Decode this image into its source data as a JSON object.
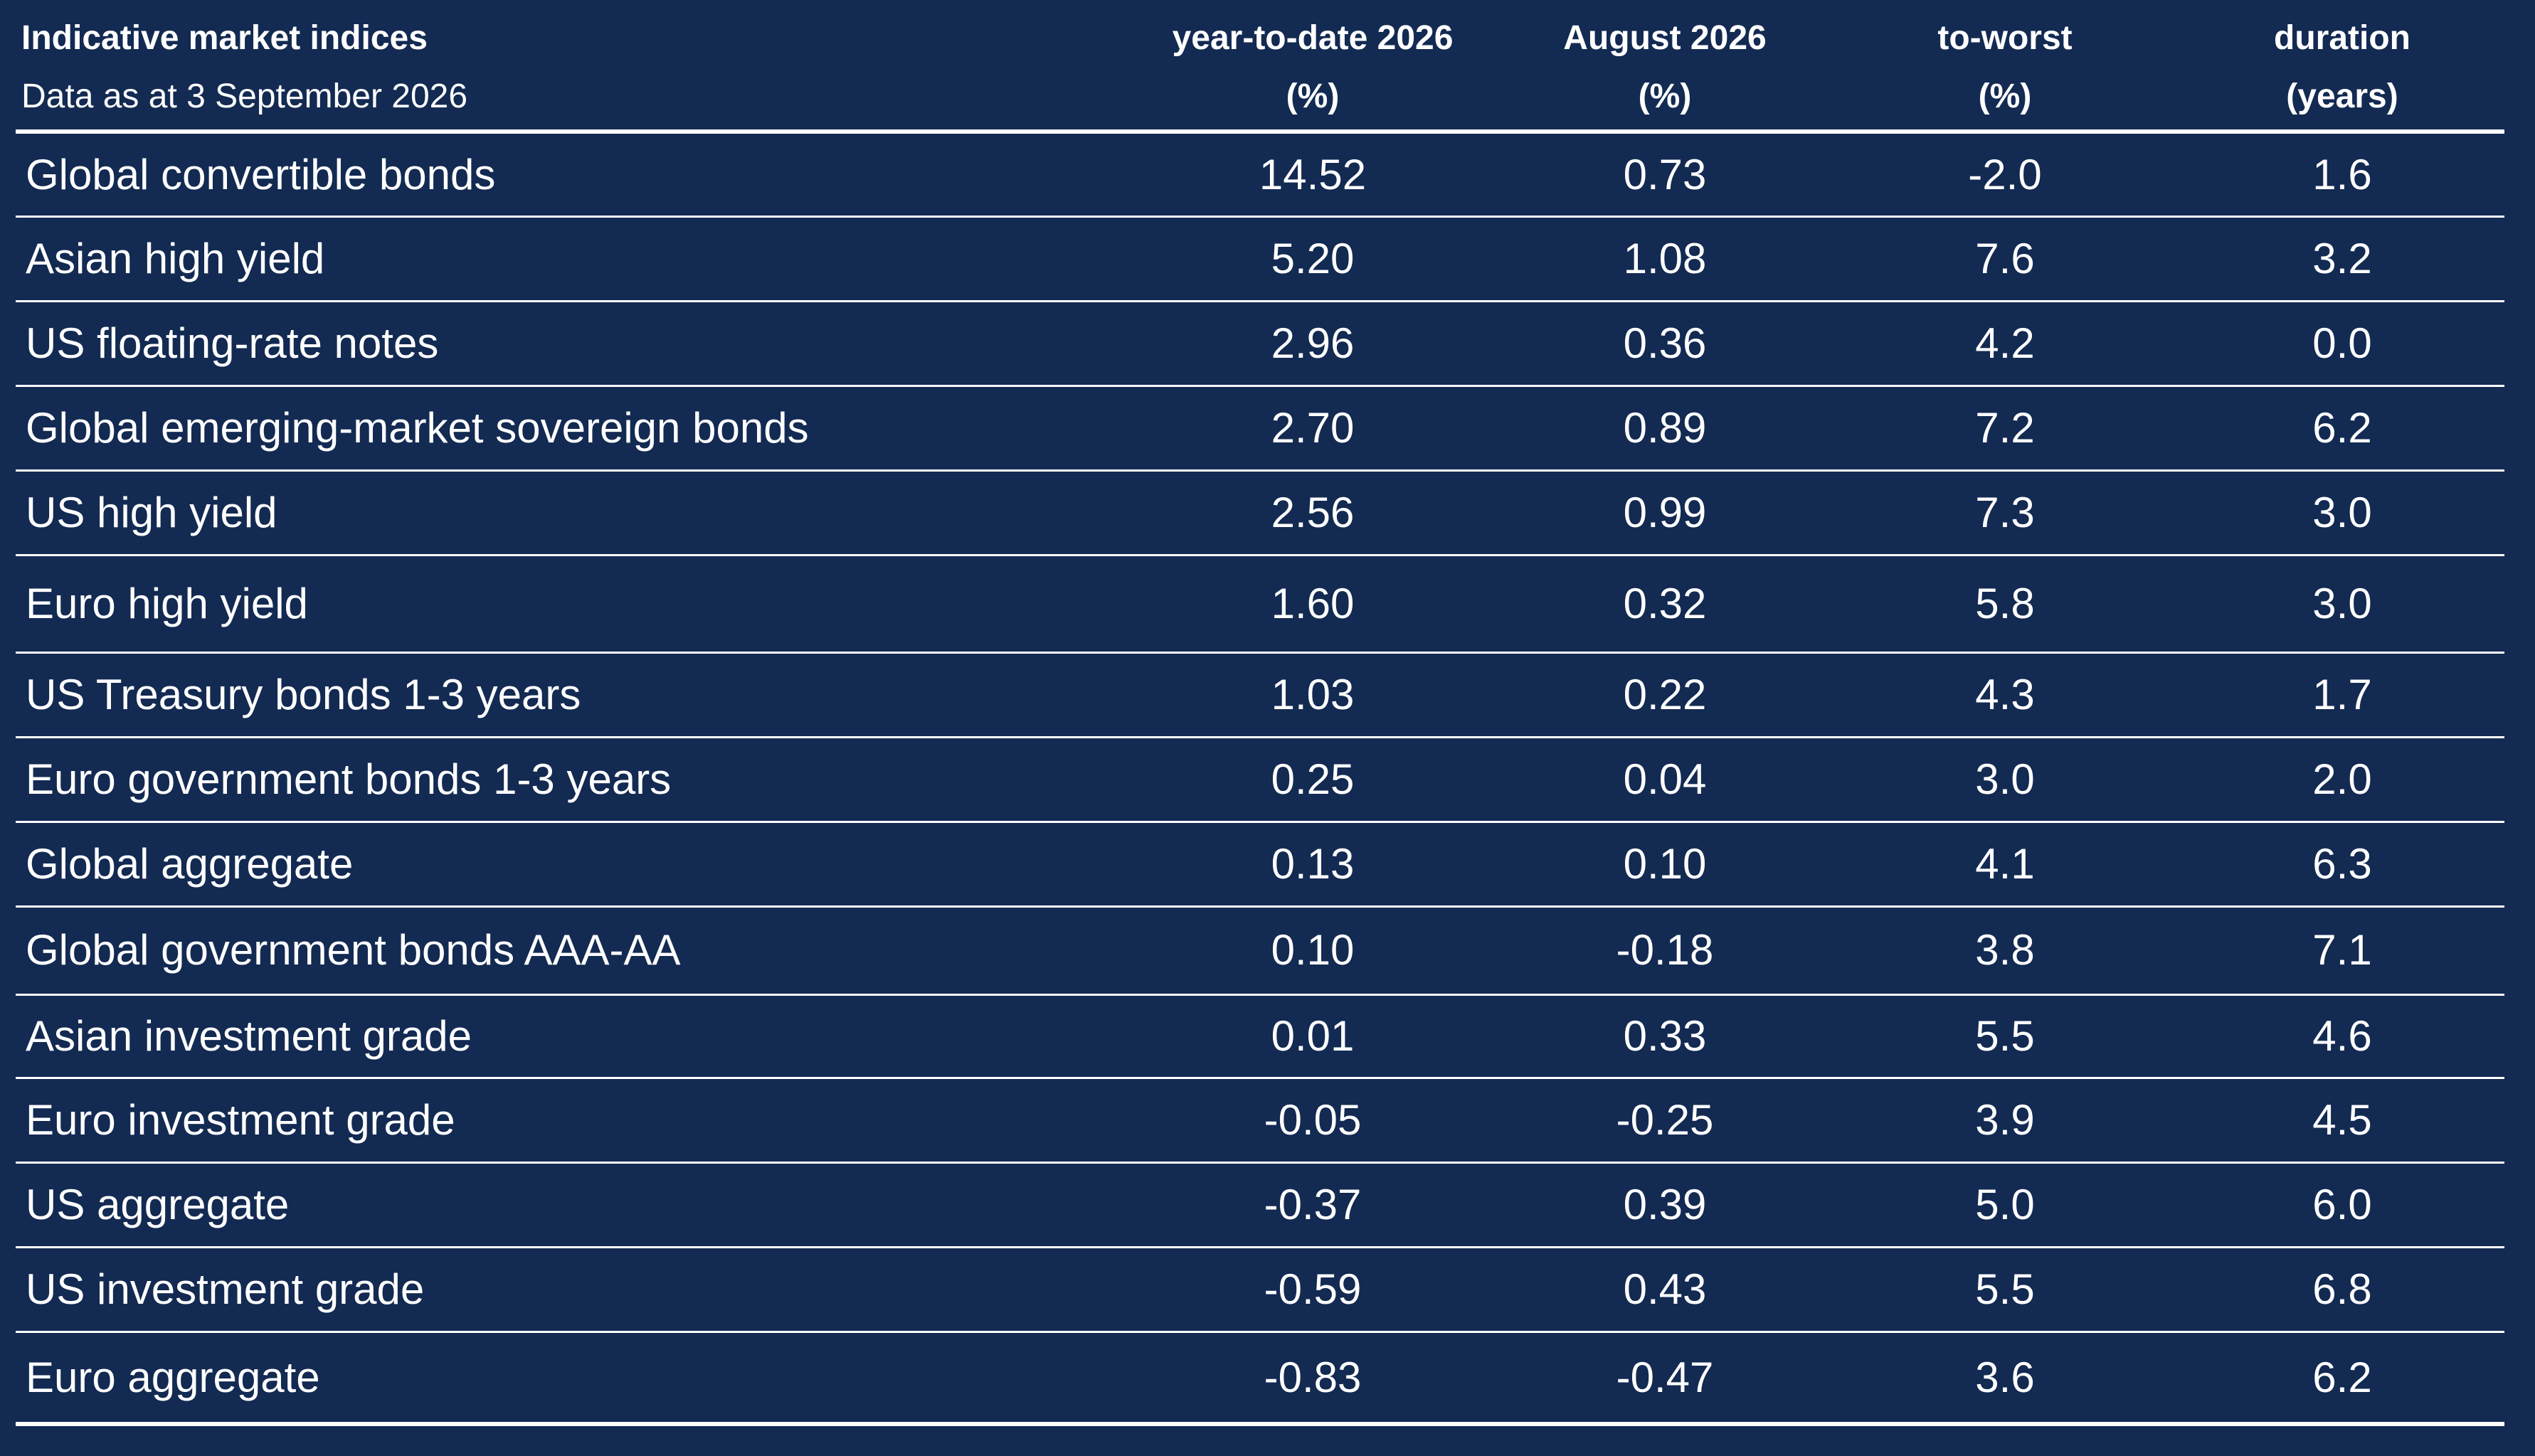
{
  "chart_data": {
    "type": "table",
    "title": "Indicative market indices",
    "subtitle": "Data as at 3 September 2026",
    "columns": [
      {
        "line1": "year-to-date 2026",
        "line2": "(%)"
      },
      {
        "line1": "August 2026",
        "line2": "(%)"
      },
      {
        "line1": "to-worst",
        "line2": "(%)"
      },
      {
        "line1": "duration",
        "line2": "(years)"
      }
    ],
    "rows": [
      {
        "name": "Global convertible bonds",
        "values": [
          "14.52",
          "0.73",
          "-2.0",
          "1.6"
        ]
      },
      {
        "name": "Asian high yield",
        "values": [
          "5.20",
          "1.08",
          "7.6",
          "3.2"
        ]
      },
      {
        "name": "US floating-rate notes",
        "values": [
          "2.96",
          "0.36",
          "4.2",
          "0.0"
        ]
      },
      {
        "name": "Global emerging-market sovereign bonds",
        "values": [
          "2.70",
          "0.89",
          "7.2",
          "6.2"
        ]
      },
      {
        "name": "US high yield",
        "values": [
          "2.56",
          "0.99",
          "7.3",
          "3.0"
        ]
      },
      {
        "name": "Euro high yield",
        "values": [
          "1.60",
          "0.32",
          "5.8",
          "3.0"
        ]
      },
      {
        "name": "US Treasury bonds 1-3 years",
        "values": [
          "1.03",
          "0.22",
          "4.3",
          "1.7"
        ]
      },
      {
        "name": "Euro government bonds 1-3 years",
        "values": [
          "0.25",
          "0.04",
          "3.0",
          "2.0"
        ]
      },
      {
        "name": "Global aggregate",
        "values": [
          "0.13",
          "0.10",
          "4.1",
          "6.3"
        ]
      },
      {
        "name": "Global government bonds AAA-AA",
        "values": [
          "0.10",
          "-0.18",
          "3.8",
          "7.1"
        ]
      },
      {
        "name": "Asian investment grade",
        "values": [
          "0.01",
          "0.33",
          "5.5",
          "4.6"
        ]
      },
      {
        "name": "Euro investment grade",
        "values": [
          "-0.05",
          "-0.25",
          "3.9",
          "4.5"
        ]
      },
      {
        "name": "US aggregate",
        "values": [
          "-0.37",
          "0.39",
          "5.0",
          "6.0"
        ]
      },
      {
        "name": "US investment grade",
        "values": [
          "-0.59",
          "0.43",
          "5.5",
          "6.8"
        ]
      },
      {
        "name": "Euro aggregate",
        "values": [
          "-0.83",
          "-0.47",
          "3.6",
          "6.2"
        ]
      }
    ]
  }
}
